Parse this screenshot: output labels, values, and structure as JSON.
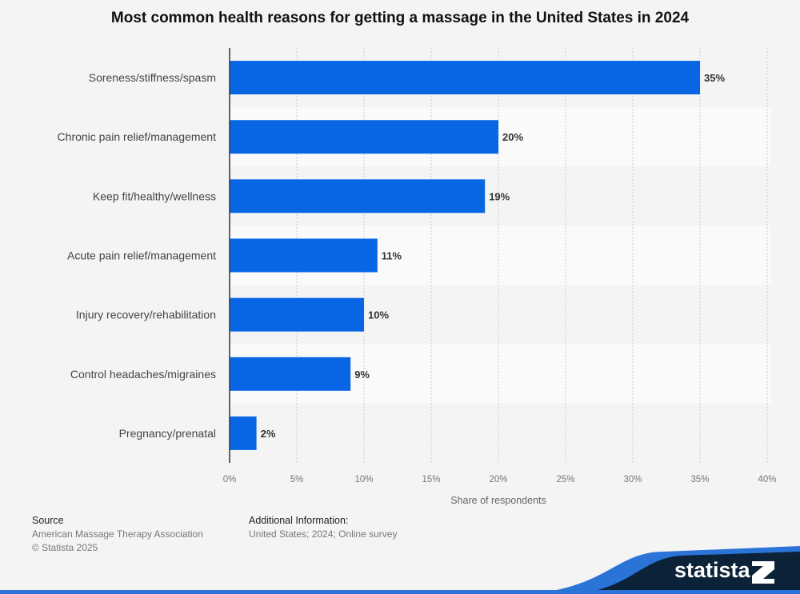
{
  "chart_data": {
    "type": "bar",
    "orientation": "horizontal",
    "title": "Most common health reasons for getting a massage in the United States in 2024",
    "categories": [
      "Soreness/stiffness/spasm",
      "Chronic pain relief/management",
      "Keep fit/healthy/wellness",
      "Acute pain relief/management",
      "Injury recovery/rehabilitation",
      "Control headaches/migraines",
      "Pregnancy/prenatal"
    ],
    "values": [
      35,
      20,
      19,
      11,
      10,
      9,
      2
    ],
    "data_labels": [
      "35%",
      "20%",
      "19%",
      "11%",
      "10%",
      "9%",
      "2%"
    ],
    "xlabel": "Share of respondents",
    "ylabel": "",
    "xlim": [
      0,
      40
    ],
    "xticks": [
      "0%",
      "5%",
      "10%",
      "15%",
      "20%",
      "25%",
      "30%",
      "35%",
      "40%"
    ],
    "grid": true,
    "bar_color": "#0866e4"
  },
  "footer": {
    "source_heading": "Source",
    "source": "American Massage Therapy Association",
    "copyright": "© Statista 2025",
    "info_heading": "Additional Information:",
    "info": "United States; 2024; Online survey",
    "logo": "statista"
  }
}
